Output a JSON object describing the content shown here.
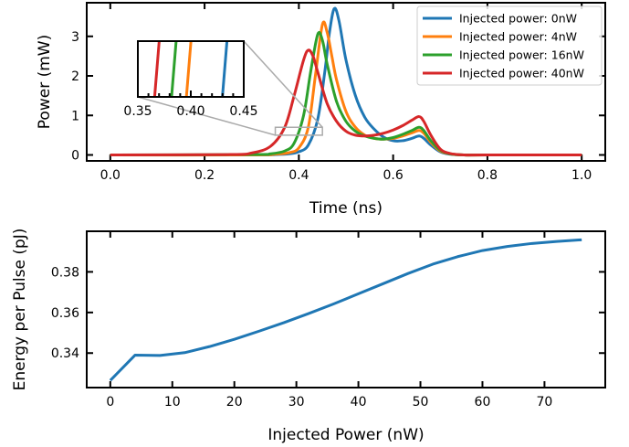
{
  "chart_data": [
    {
      "type": "line",
      "xlabel": "Time (ns)",
      "ylabel": "Power (mW)",
      "xlim": [
        -0.05,
        1.05
      ],
      "ylim": [
        -0.15,
        3.85
      ],
      "xticks": [
        0.0,
        0.2,
        0.4,
        0.6,
        0.8,
        1.0
      ],
      "xtick_labels": [
        "0.0",
        "0.2",
        "0.4",
        "0.6",
        "0.8",
        "1.0"
      ],
      "yticks": [
        0,
        1,
        2,
        3
      ],
      "ytick_labels": [
        "0",
        "1",
        "2",
        "3"
      ],
      "legend_position": "top-right",
      "series": [
        {
          "name": "Injected power: 0nW",
          "color": "#1f77b4",
          "x": [
            0.0,
            0.3,
            0.35,
            0.38,
            0.4,
            0.42,
            0.44,
            0.455,
            0.465,
            0.475,
            0.485,
            0.5,
            0.52,
            0.54,
            0.56,
            0.58,
            0.6,
            0.62,
            0.64,
            0.655,
            0.665,
            0.68,
            0.7,
            0.72,
            0.75,
            0.8,
            1.0
          ],
          "y": [
            0.0,
            0.0,
            0.01,
            0.03,
            0.08,
            0.25,
            0.9,
            2.1,
            3.1,
            3.7,
            3.4,
            2.4,
            1.5,
            0.95,
            0.65,
            0.45,
            0.36,
            0.36,
            0.42,
            0.48,
            0.42,
            0.25,
            0.08,
            0.02,
            0.0,
            0.0,
            0.0
          ]
        },
        {
          "name": "Injected power: 4nW",
          "color": "#ff7f0e",
          "x": [
            0.0,
            0.3,
            0.35,
            0.38,
            0.4,
            0.42,
            0.435,
            0.45,
            0.46,
            0.47,
            0.48,
            0.5,
            0.52,
            0.54,
            0.56,
            0.58,
            0.6,
            0.62,
            0.64,
            0.655,
            0.665,
            0.68,
            0.7,
            0.72,
            0.75,
            0.8,
            1.0
          ],
          "y": [
            0.0,
            0.0,
            0.02,
            0.06,
            0.18,
            0.7,
            2.0,
            3.3,
            3.1,
            2.5,
            1.9,
            1.1,
            0.7,
            0.5,
            0.42,
            0.4,
            0.42,
            0.48,
            0.56,
            0.62,
            0.55,
            0.32,
            0.1,
            0.03,
            0.0,
            0.0,
            0.0
          ]
        },
        {
          "name": "Injected power: 16nW",
          "color": "#2ca02c",
          "x": [
            0.0,
            0.3,
            0.34,
            0.37,
            0.39,
            0.41,
            0.425,
            0.44,
            0.45,
            0.46,
            0.48,
            0.5,
            0.52,
            0.54,
            0.56,
            0.58,
            0.6,
            0.62,
            0.64,
            0.655,
            0.665,
            0.68,
            0.7,
            0.72,
            0.75,
            0.8,
            1.0
          ],
          "y": [
            0.0,
            0.01,
            0.03,
            0.1,
            0.3,
            1.0,
            2.1,
            3.05,
            2.9,
            2.3,
            1.35,
            0.85,
            0.6,
            0.48,
            0.42,
            0.4,
            0.44,
            0.52,
            0.62,
            0.7,
            0.62,
            0.36,
            0.12,
            0.03,
            0.0,
            0.0,
            0.0
          ]
        },
        {
          "name": "Injected power: 40nW",
          "color": "#d62728",
          "x": [
            0.0,
            0.25,
            0.3,
            0.34,
            0.37,
            0.39,
            0.41,
            0.42,
            0.43,
            0.44,
            0.46,
            0.48,
            0.5,
            0.52,
            0.54,
            0.56,
            0.58,
            0.6,
            0.62,
            0.64,
            0.655,
            0.665,
            0.68,
            0.7,
            0.72,
            0.75,
            0.8,
            1.0
          ],
          "y": [
            0.0,
            0.01,
            0.05,
            0.22,
            0.7,
            1.5,
            2.4,
            2.65,
            2.5,
            2.1,
            1.3,
            0.85,
            0.6,
            0.5,
            0.48,
            0.5,
            0.55,
            0.63,
            0.74,
            0.88,
            0.97,
            0.85,
            0.5,
            0.15,
            0.04,
            0.0,
            0.0,
            0.0
          ]
        }
      ],
      "inset": {
        "xlim": [
          0.35,
          0.45
        ],
        "xticks": [
          0.35,
          0.4,
          0.45
        ],
        "xtick_labels": [
          "0.35",
          "0.40",
          "0.45"
        ],
        "ylim": [
          0.5,
          0.7
        ],
        "crossings": [
          {
            "series": "Injected power: 0nW",
            "x": 0.432
          },
          {
            "series": "Injected power: 4nW",
            "x": 0.398
          },
          {
            "series": "Injected power: 16nW",
            "x": 0.384
          },
          {
            "series": "Injected power: 40nW",
            "x": 0.368
          }
        ]
      }
    },
    {
      "type": "line",
      "xlabel": "Injected Power (nW)",
      "ylabel": "Energy per Pulse (pJ)",
      "xlim": [
        -3.8,
        79.8
      ],
      "ylim": [
        0.323,
        0.4
      ],
      "xticks": [
        0,
        10,
        20,
        30,
        40,
        50,
        60,
        70
      ],
      "xtick_labels": [
        "0",
        "10",
        "20",
        "30",
        "40",
        "50",
        "60",
        "70"
      ],
      "yticks": [
        0.34,
        0.36,
        0.38
      ],
      "ytick_labels": [
        "0.34",
        "0.36",
        "0.38"
      ],
      "series": [
        {
          "color": "#1f77b4",
          "x": [
            0,
            4,
            8,
            12,
            16,
            20,
            24,
            28,
            32,
            36,
            40,
            44,
            48,
            52,
            56,
            60,
            64,
            68,
            72,
            76
          ],
          "y": [
            0.3265,
            0.339,
            0.3388,
            0.3402,
            0.3432,
            0.3468,
            0.3508,
            0.355,
            0.3595,
            0.3642,
            0.3692,
            0.3742,
            0.3792,
            0.3838,
            0.3875,
            0.3905,
            0.3925,
            0.394,
            0.395,
            0.3958
          ]
        }
      ]
    }
  ]
}
